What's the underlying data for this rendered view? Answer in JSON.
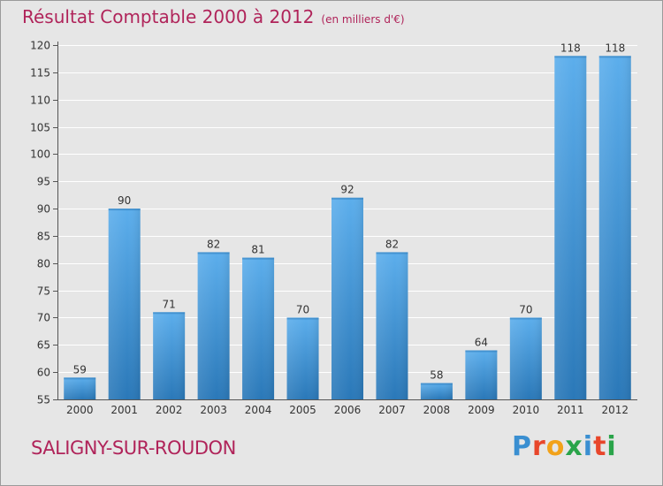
{
  "chart_data": {
    "type": "bar",
    "title": "Résultat Comptable 2000 à 2012",
    "subtitle": "(en milliers d'€)",
    "categories": [
      "2000",
      "2001",
      "2002",
      "2003",
      "2004",
      "2005",
      "2006",
      "2007",
      "2008",
      "2009",
      "2010",
      "2011",
      "2012"
    ],
    "values": [
      59,
      90,
      71,
      82,
      81,
      70,
      92,
      82,
      58,
      64,
      70,
      118,
      118
    ],
    "ylim": [
      55,
      120
    ],
    "yticks": [
      55,
      60,
      65,
      70,
      75,
      80,
      85,
      90,
      95,
      100,
      105,
      110,
      115,
      120
    ],
    "xlabel": "",
    "ylabel": "",
    "grid": true
  },
  "place_name": "SALIGNY-SUR-ROUDON",
  "logo": {
    "text": "Proxiti",
    "letter_colors": [
      "#3a8fd1",
      "#e8462b",
      "#f2a21a",
      "#2aa44a",
      "#3a8fd1",
      "#e8462b",
      "#2aa44a"
    ]
  },
  "colors": {
    "title": "#b0245a",
    "bar_light": "#5aaeea",
    "bar_dark": "#2a78b8",
    "grid": "#ffffff",
    "background": "#e6e6e6"
  }
}
